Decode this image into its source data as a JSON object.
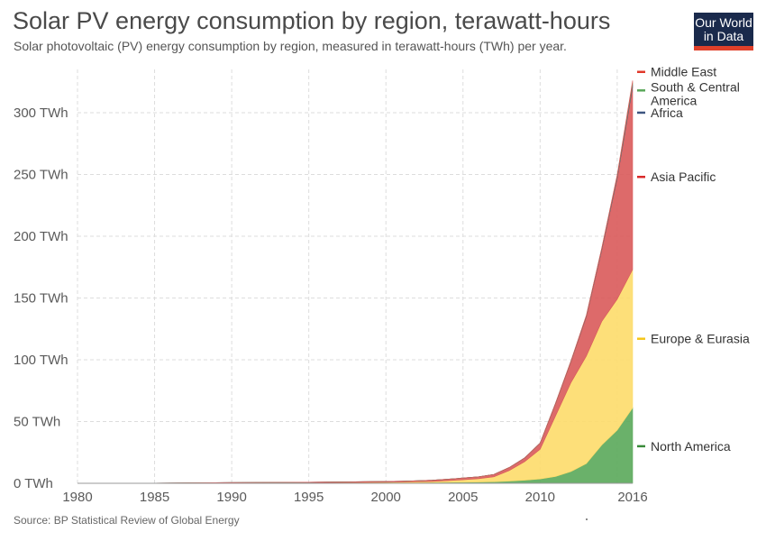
{
  "header": {
    "title": "Solar PV energy consumption by region, terawatt-hours",
    "subtitle": "Solar photovoltaic (PV) energy consumption by region, measured in terawatt-hours (TWh) per year."
  },
  "logo": {
    "line1": "Our World",
    "line2": "in Data",
    "bg": "#1a2a4c",
    "accent": "#e0402a"
  },
  "footer": {
    "source": "Source: BP Statistical Review of Global Energy"
  },
  "chart_data": {
    "type": "area",
    "stacked": true,
    "title": "Solar PV energy consumption by region, terawatt-hours",
    "ylim": [
      0,
      335
    ],
    "yticks": [
      {
        "value": 0,
        "label": "0 TWh"
      },
      {
        "value": 50,
        "label": "50 TWh"
      },
      {
        "value": 100,
        "label": "100 TWh"
      },
      {
        "value": 150,
        "label": "150 TWh"
      },
      {
        "value": 200,
        "label": "200 TWh"
      },
      {
        "value": 250,
        "label": "250 TWh"
      },
      {
        "value": 300,
        "label": "300 TWh"
      }
    ],
    "xlim": [
      1980,
      2016
    ],
    "xticks": [
      1980,
      1985,
      1990,
      1995,
      2000,
      2005,
      2010,
      2016
    ],
    "xgrid": [
      1980,
      1985,
      1990,
      1995,
      2000,
      2005,
      2010,
      2015
    ],
    "grid": true,
    "x": [
      1980,
      1985,
      1990,
      1995,
      1998,
      2000,
      2001,
      2002,
      2003,
      2004,
      2005,
      2006,
      2007,
      2008,
      2009,
      2010,
      2011,
      2012,
      2013,
      2014,
      2015,
      2016
    ],
    "series": [
      {
        "name": "North America",
        "color": "#5aa85a",
        "values": [
          0,
          0,
          0.2,
          0.3,
          0.4,
          0.5,
          0.5,
          0.6,
          0.7,
          0.8,
          0.9,
          1,
          1.2,
          1.8,
          2.5,
          3.5,
          5.5,
          9.5,
          16,
          31,
          43,
          61
        ]
      },
      {
        "name": "Europe & Eurasia",
        "color": "#fddb6a",
        "values": [
          0,
          0,
          0.1,
          0.2,
          0.3,
          0.4,
          0.5,
          0.7,
          0.8,
          1.3,
          2,
          2.7,
          4,
          8.5,
          15,
          24,
          49,
          72,
          87,
          100,
          106,
          112
        ]
      },
      {
        "name": "Asia Pacific",
        "color": "#d95a5a",
        "values": [
          0,
          0.1,
          0.3,
          0.4,
          0.5,
          0.6,
          0.7,
          0.8,
          1,
          1.2,
          1.4,
          1.6,
          2,
          2.5,
          3,
          5,
          10,
          17,
          32,
          58,
          98,
          148
        ]
      },
      {
        "name": "Africa",
        "color": "#3d5580",
        "values": [
          0,
          0,
          0,
          0,
          0,
          0,
          0,
          0,
          0,
          0,
          0,
          0,
          0,
          0,
          0.1,
          0.1,
          0.2,
          0.3,
          0.5,
          0.8,
          1.2,
          1.8
        ]
      },
      {
        "name": "South & Central America",
        "color": "#5aa85a",
        "values": [
          0,
          0,
          0,
          0,
          0,
          0,
          0,
          0,
          0,
          0,
          0,
          0,
          0,
          0,
          0,
          0,
          0.1,
          0.1,
          0.2,
          0.3,
          0.6,
          1.5
        ]
      },
      {
        "name": "Middle East",
        "color": "#d95a5a",
        "values": [
          0,
          0,
          0,
          0,
          0,
          0,
          0,
          0,
          0,
          0,
          0,
          0,
          0,
          0,
          0,
          0,
          0.1,
          0.2,
          0.4,
          0.6,
          1,
          1.7
        ]
      }
    ],
    "legend": [
      {
        "label": "Middle East",
        "color": "#e0382a",
        "anchor": 333
      },
      {
        "label": "South & Central America",
        "color": "#5aa85a",
        "anchor": 318
      },
      {
        "label": "Africa",
        "color": "#3d5580",
        "anchor": 300
      },
      {
        "label": "Asia Pacific",
        "color": "#d92a2a",
        "anchor": 248
      },
      {
        "label": "Europe & Eurasia",
        "color": "#f5c518",
        "anchor": 117
      },
      {
        "label": "North America",
        "color": "#3a8a3a",
        "anchor": 30
      }
    ],
    "legend_position": "right"
  }
}
